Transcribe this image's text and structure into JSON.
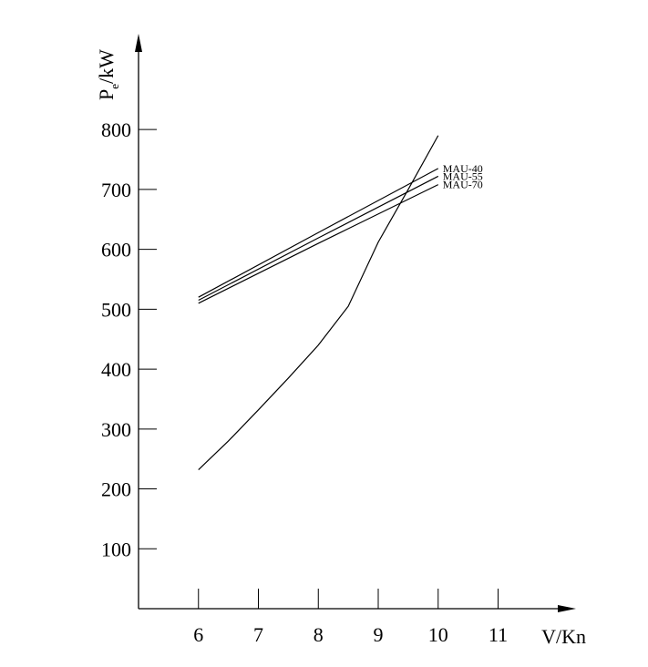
{
  "chart_data": {
    "type": "line",
    "ylabel": {
      "main": "P",
      "sub": "e",
      "rest": "/kW"
    },
    "xlabel": "V/Kn",
    "xlim": [
      5,
      12.3
    ],
    "ylim": [
      0,
      960
    ],
    "xticks": [
      6,
      7,
      8,
      9,
      10,
      11
    ],
    "yticks": [
      100,
      200,
      300,
      400,
      500,
      600,
      700,
      800
    ],
    "series": [
      {
        "color": "#000000",
        "x": [
          6,
          6.5,
          7,
          7.5,
          8,
          8.5,
          9,
          9.5,
          10
        ],
        "values": [
          232,
          280,
          332,
          385,
          440,
          505,
          612,
          700,
          790
        ]
      },
      {
        "name": "MAU-40",
        "color": "#000000",
        "x": [
          6,
          8,
          10
        ],
        "values": [
          520,
          628,
          735
        ]
      },
      {
        "name": "MAU-55",
        "color": "#000000",
        "x": [
          6,
          8,
          10
        ],
        "values": [
          515,
          619,
          722
        ]
      },
      {
        "name": "MAU-70",
        "color": "#000000",
        "x": [
          6,
          8,
          10
        ],
        "values": [
          510,
          610,
          708
        ]
      }
    ]
  }
}
